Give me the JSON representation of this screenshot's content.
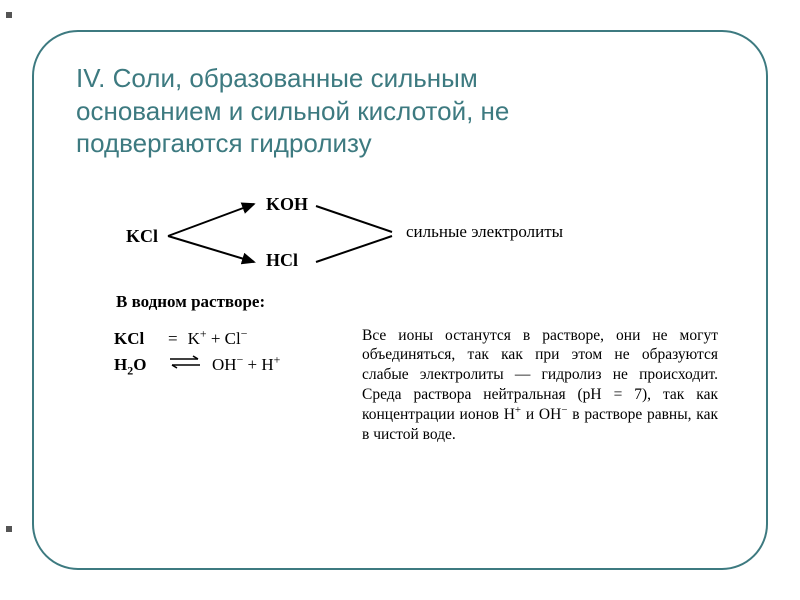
{
  "colors": {
    "accent": "#3d7a80",
    "text": "#000000",
    "background": "#ffffff"
  },
  "title": {
    "line1": "IV. Соли, образованные сильным",
    "line2": "основанием и сильной кислотой, не",
    "line3": "подвергаются гидролизу"
  },
  "scheme": {
    "left": "KCl",
    "top_product": "KOH",
    "bottom_product": "HCl",
    "right_label": "сильные электролиты"
  },
  "caption": "В водном растворе:",
  "equations": {
    "row1": {
      "left": "KCl",
      "eq": "=",
      "right_html": "K<sup>+</sup> + Cl<sup>−</sup>"
    },
    "row2": {
      "left_html": "H<sub>2</sub>O",
      "right_html": "OH<sup>−</sup> + H<sup>+</sup>"
    }
  },
  "paragraph_html": "Все ионы останутся в растворе, они не могут объединяться, так как при этом не образуются слабые электролиты — гидролиз не происходит. Среда раствора нейтральная (pH = 7), так как концентрации ионов H<sup>+</sup> и OH<sup>−</sup> в растворе равны, как в чистой воде."
}
